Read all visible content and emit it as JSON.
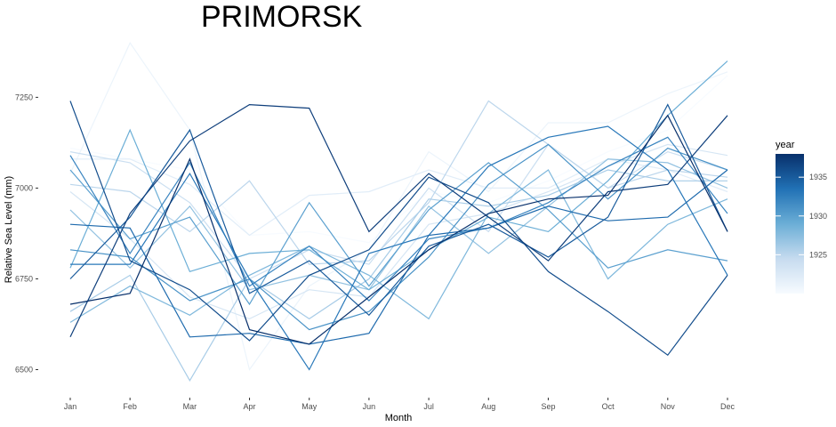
{
  "chart_data": {
    "type": "line",
    "title": "PRIMORSK",
    "xlabel": "Month",
    "ylabel": "Relative Sea Level (mm)",
    "categories": [
      "Jan",
      "Feb",
      "Mar",
      "Apr",
      "May",
      "Jun",
      "Jul",
      "Aug",
      "Sep",
      "Oct",
      "Nov",
      "Dec"
    ],
    "ylim": [
      6440,
      7420
    ],
    "yticks": [
      6500,
      6750,
      7000,
      7250
    ],
    "ytick_labels": [
      "6500",
      "6750",
      "7000",
      "7250"
    ],
    "grid": false,
    "legend": {
      "title": "year",
      "placement": "right",
      "range": [
        1920,
        1938
      ],
      "ticks": [
        1925,
        1930,
        1935
      ],
      "colors": [
        "#f7fbff",
        "#c6dbef",
        "#6baed6",
        "#2171b5",
        "#08306b"
      ]
    },
    "series": [
      {
        "year": 1920,
        "values": [
          7110,
          7080,
          7050,
          6870,
          6880,
          6850,
          6990,
          6960,
          7020,
          7100,
          7160,
          7310
        ]
      },
      {
        "year": 1921,
        "values": [
          7040,
          7400,
          7160,
          6500,
          6730,
          6830,
          7100,
          6990,
          7180,
          7180,
          7260,
          7320
        ]
      },
      {
        "year": 1922,
        "values": [
          7080,
          7080,
          7010,
          6870,
          6980,
          6990,
          7050,
          7000,
          7000,
          7080,
          7050,
          6990
        ]
      },
      {
        "year": 1923,
        "values": [
          6990,
          6860,
          6700,
          6640,
          6720,
          6700,
          6900,
          6930,
          6990,
          7060,
          7120,
          7090
        ]
      },
      {
        "year": 1924,
        "values": [
          7100,
          7070,
          6960,
          6750,
          6830,
          6790,
          7000,
          6880,
          7120,
          7000,
          7100,
          7050
        ]
      },
      {
        "year": 1925,
        "values": [
          7010,
          6990,
          6880,
          7020,
          6790,
          6800,
          6960,
          7240,
          7120,
          7000,
          7050,
          7030
        ]
      },
      {
        "year": 1926,
        "values": [
          6660,
          6760,
          6470,
          6750,
          6640,
          6750,
          6970,
          6950,
          6980,
          7050,
          7020,
          7020
        ]
      },
      {
        "year": 1927,
        "values": [
          6940,
          6780,
          6950,
          6720,
          6760,
          6720,
          6950,
          6820,
          6950,
          7080,
          7070,
          7000
        ]
      },
      {
        "year": 1928,
        "values": [
          6630,
          6730,
          6650,
          6760,
          6840,
          6760,
          6640,
          6930,
          7050,
          6750,
          6900,
          6970
        ]
      },
      {
        "year": 1929,
        "values": [
          6780,
          7160,
          6770,
          6820,
          6830,
          6720,
          6830,
          6920,
          6880,
          7020,
          7200,
          7350
        ]
      },
      {
        "year": 1930,
        "values": [
          7050,
          6860,
          6920,
          6680,
          6960,
          6730,
          6940,
          7070,
          6940,
          6780,
          6830,
          6800
        ]
      },
      {
        "year": 1931,
        "values": [
          6830,
          6810,
          6690,
          6750,
          6610,
          6660,
          6810,
          7010,
          7120,
          6970,
          7110,
          7050
        ]
      },
      {
        "year": 1932,
        "values": [
          7090,
          6820,
          7070,
          6730,
          6840,
          6690,
          6860,
          6890,
          6960,
          7060,
          7140,
          6930
        ]
      },
      {
        "year": 1933,
        "values": [
          6790,
          6790,
          7040,
          6750,
          6500,
          6820,
          6870,
          7060,
          7140,
          7170,
          7050,
          6760
        ]
      },
      {
        "year": 1934,
        "values": [
          6900,
          6890,
          6590,
          6600,
          6570,
          6600,
          6870,
          6890,
          6950,
          6910,
          6920,
          7050
        ]
      },
      {
        "year": 1935,
        "values": [
          6750,
          6920,
          7160,
          6710,
          6800,
          6650,
          6840,
          6900,
          6810,
          6920,
          7230,
          6880
        ]
      },
      {
        "year": 1936,
        "values": [
          7240,
          6800,
          6720,
          6580,
          6760,
          6830,
          7030,
          6960,
          6770,
          6660,
          6540,
          6760
        ]
      },
      {
        "year": 1937,
        "values": [
          6590,
          6930,
          7130,
          7230,
          7220,
          6880,
          7040,
          6920,
          6800,
          6990,
          7010,
          7200
        ]
      },
      {
        "year": 1938,
        "values": [
          6680,
          6710,
          7080,
          6610,
          6570,
          6700,
          6830,
          6930,
          6970,
          6980,
          7200,
          6880
        ]
      }
    ]
  }
}
